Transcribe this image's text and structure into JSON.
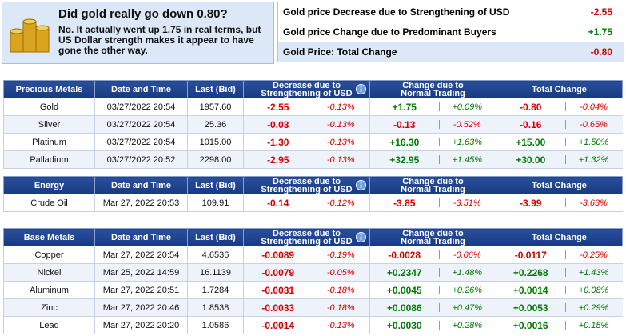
{
  "summary": {
    "title": "Did gold really go down 0.80?",
    "text": "No. It actually went up 1.75 in real terms, but US Dollar strength makes it appear to have gone the other way.",
    "rows": [
      [
        "Gold price Decrease due to Strengthening of USD",
        "-2.55"
      ],
      [
        "Gold price Change due to Predominant Buyers",
        "+1.75"
      ],
      [
        "Gold Price: Total Change",
        "-0.80"
      ]
    ]
  },
  "tables": [
    {
      "headers": [
        "Precious Metals",
        "Date and Time",
        "Last (Bid)",
        "Decrease due to Strengthening of USD",
        "Change due to Normal Trading",
        "Total Change"
      ],
      "rows": [
        [
          "Gold",
          "03/27/2022 20:54",
          "1957.60",
          "-2.55",
          "-0.13%",
          "+1.75",
          "+0.09%",
          "-0.80",
          "-0.04%"
        ],
        [
          "Silver",
          "03/27/2022 20:54",
          "25.36",
          "-0.03",
          "-0.13%",
          "-0.13",
          "-0.52%",
          "-0.16",
          "-0.65%"
        ],
        [
          "Platinum",
          "03/27/2022 20:54",
          "1015.00",
          "-1.30",
          "-0.13%",
          "+16.30",
          "+1.63%",
          "+15.00",
          "+1.50%"
        ],
        [
          "Palladium",
          "03/27/2022 20:52",
          "2298.00",
          "-2.95",
          "-0.13%",
          "+32.95",
          "+1.45%",
          "+30.00",
          "+1.32%"
        ]
      ]
    },
    {
      "headers": [
        "Energy",
        "Date and Time",
        "Last (Bid)",
        "Decrease due to Strengthening of USD",
        "Change due to Normal Trading",
        "Total Change"
      ],
      "rows": [
        [
          "Crude Oil",
          "Mar 27, 2022 20:53",
          "109.91",
          "-0.14",
          "-0.12%",
          "-3.85",
          "-3.51%",
          "-3.99",
          "-3.63%"
        ]
      ]
    },
    {
      "headers": [
        "Base Metals",
        "Date and Time",
        "Last (Bid)",
        "Decrease due to Strengthening of USD",
        "Change due to Normal Trading",
        "Total Change"
      ],
      "rows": [
        [
          "Copper",
          "Mar 27, 2022 20:54",
          "4.6536",
          "-0.0089",
          "-0.19%",
          "-0.0028",
          "-0.06%",
          "-0.0117",
          "-0.25%"
        ],
        [
          "Nickel",
          "Mar 25, 2022 14:59",
          "16.1139",
          "-0.0079",
          "-0.05%",
          "+0.2347",
          "+1.48%",
          "+0.2268",
          "+1.43%"
        ],
        [
          "Aluminum",
          "Mar 27, 2022 20:51",
          "1.7284",
          "-0.0031",
          "-0.18%",
          "+0.0045",
          "+0.26%",
          "+0.0014",
          "+0.08%"
        ],
        [
          "Zinc",
          "Mar 27, 2022 20:46",
          "1.8538",
          "-0.0033",
          "-0.18%",
          "+0.0086",
          "+0.47%",
          "+0.0053",
          "+0.29%"
        ],
        [
          "Lead",
          "Mar 27, 2022 20:20",
          "1.0586",
          "-0.0014",
          "-0.13%",
          "+0.0030",
          "+0.28%",
          "+0.0016",
          "+0.15%"
        ]
      ]
    }
  ]
}
